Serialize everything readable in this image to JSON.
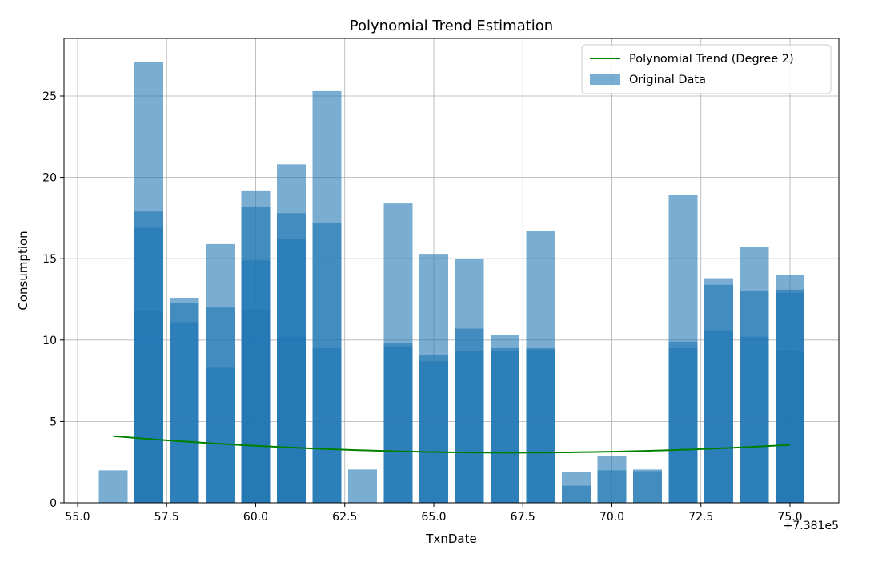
{
  "chart_data": {
    "type": "bar",
    "title": "Polynomial Trend Estimation",
    "xlabel": "TxnDate",
    "ylabel": "Consumption",
    "x_offset_label": "+7.381e5",
    "xlim": [
      55.0,
      75.0
    ],
    "ylim": [
      0,
      27.0
    ],
    "x_ticks": [
      {
        "value": 55.0,
        "label": "55.0"
      },
      {
        "value": 57.5,
        "label": "57.5"
      },
      {
        "value": 60.0,
        "label": "60.0"
      },
      {
        "value": 62.5,
        "label": "62.5"
      },
      {
        "value": 65.0,
        "label": "65.0"
      },
      {
        "value": 67.5,
        "label": "67.5"
      },
      {
        "value": 70.0,
        "label": "70.0"
      },
      {
        "value": 72.5,
        "label": "72.5"
      },
      {
        "value": 75.0,
        "label": "75.0"
      }
    ],
    "y_ticks": [
      {
        "value": 0,
        "label": "0"
      },
      {
        "value": 5,
        "label": "5"
      },
      {
        "value": 10,
        "label": "10"
      },
      {
        "value": 15,
        "label": "15"
      },
      {
        "value": 20,
        "label": "20"
      },
      {
        "value": 25,
        "label": "25"
      }
    ],
    "grid": true,
    "legend_position": "top-right",
    "bar_color": "#1f77b4",
    "bar_opacity": 0.6,
    "trend_color": "#008000",
    "series": [
      {
        "name": "Original Data",
        "kind": "bar",
        "points": [
          {
            "x": 56,
            "values": [
              2.0
            ]
          },
          {
            "x": 57,
            "values": [
              27.1,
              17.9,
              16.9,
              11.8
            ]
          },
          {
            "x": 58,
            "values": [
              12.6,
              12.3,
              11.1
            ]
          },
          {
            "x": 59,
            "values": [
              15.9,
              12.0,
              8.3
            ]
          },
          {
            "x": 60,
            "values": [
              19.2,
              18.2,
              14.9,
              11.9
            ]
          },
          {
            "x": 61,
            "values": [
              20.8,
              17.8,
              16.2,
              10.2
            ]
          },
          {
            "x": 62,
            "values": [
              25.3,
              17.2,
              9.5
            ]
          },
          {
            "x": 63,
            "values": [
              2.05
            ]
          },
          {
            "x": 64,
            "values": [
              18.4,
              9.8,
              9.6
            ]
          },
          {
            "x": 65,
            "values": [
              15.3,
              9.1,
              8.7
            ]
          },
          {
            "x": 66,
            "values": [
              15.0,
              10.7,
              9.3
            ]
          },
          {
            "x": 67,
            "values": [
              10.3,
              9.5,
              9.3
            ]
          },
          {
            "x": 68,
            "values": [
              16.7,
              9.5,
              9.4
            ]
          },
          {
            "x": 69,
            "values": [
              1.9,
              1.05
            ]
          },
          {
            "x": 70,
            "values": [
              2.9,
              2.0
            ]
          },
          {
            "x": 71,
            "values": [
              2.05,
              1.95
            ]
          },
          {
            "x": 72,
            "values": [
              18.9,
              9.9,
              9.5
            ]
          },
          {
            "x": 73,
            "values": [
              13.8,
              13.4,
              10.6
            ]
          },
          {
            "x": 74,
            "values": [
              15.7,
              13.0,
              10.2
            ]
          },
          {
            "x": 75,
            "values": [
              14.0,
              13.1,
              12.9,
              9.3
            ]
          }
        ]
      },
      {
        "name": "Polynomial Trend (Degree 2)",
        "kind": "line",
        "x_start": 56,
        "x_end": 75,
        "coefficients": {
          "a": 0.00801,
          "b": -1.0775,
          "c": 39.32
        }
      }
    ]
  }
}
